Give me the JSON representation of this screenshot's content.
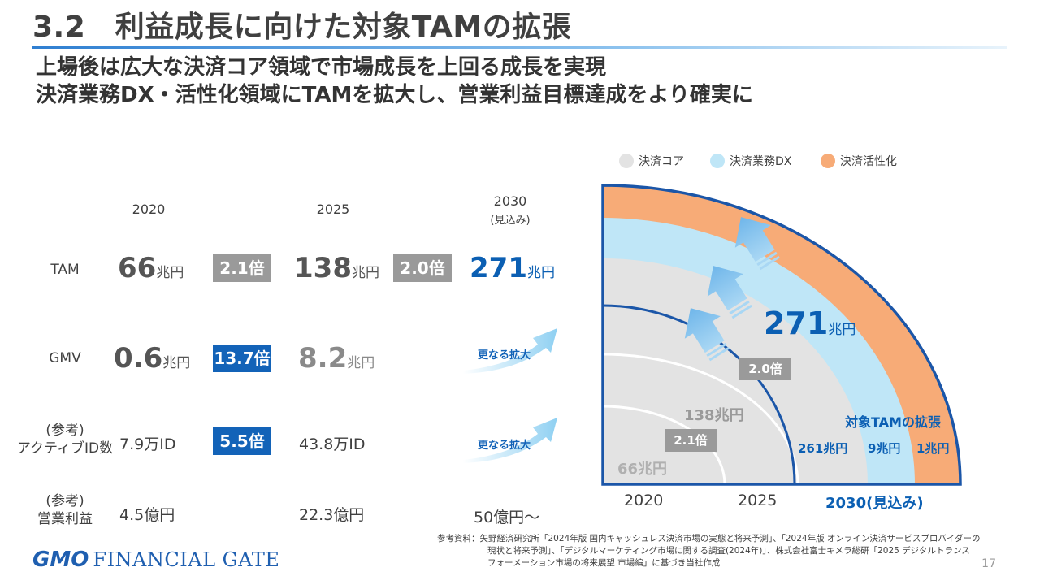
{
  "header": {
    "title": "3.2　利益成長に向けた対象TAMの拡張",
    "subtitle_line1": "上場後は広大な決済コア領域で市場成長を上回る成長を実現",
    "subtitle_line2": "決済業務DX・活性化領域にTAMを拡大し、営業利益目標達成をより確実に"
  },
  "table": {
    "year_2020": "2020",
    "year_2025": "2025",
    "year_2030": "2030",
    "year_2030_note": "(見込み)",
    "rows": {
      "tam": {
        "label": "TAM",
        "v2020": "66",
        "v2020_unit": "兆円",
        "mult1": "2.1倍",
        "v2025": "138",
        "v2025_unit": "兆円",
        "mult2": "2.0倍",
        "v2030": "271",
        "v2030_unit": "兆円"
      },
      "gmv": {
        "label": "GMV",
        "v2020": "0.6",
        "v2020_unit": "兆円",
        "mult1": "13.7倍",
        "v2025": "8.2",
        "v2025_unit": "兆円",
        "further": "更なる拡大"
      },
      "active": {
        "label_line1": "(参考)",
        "label_line2": "アクティブID数",
        "v2020": "7.9万ID",
        "mult1": "5.5倍",
        "v2025": "43.8万ID",
        "further": "更なる拡大"
      },
      "profit": {
        "label_line1": "(参考)",
        "label_line2": "営業利益",
        "v2020": "4.5億円",
        "v2025": "22.3億円",
        "v2030": "50億円～"
      }
    }
  },
  "diagram": {
    "legend": {
      "core": "決済コア",
      "dx": "決済業務DX",
      "activation": "決済活性化"
    },
    "colors": {
      "core": "#e3e3e3",
      "dx": "#bfe6f7",
      "activation": "#f7ab77",
      "outline": "#1b56a8",
      "accent": "#0b5fb3"
    },
    "total_num": "271",
    "total_unit": "兆円",
    "mult_upper": "2.0倍",
    "mult_lower": "2.1倍",
    "val_2025": "138兆円",
    "val_2020": "66兆円",
    "expansion_title": "対象TAMの拡張",
    "seg_core": "261兆円",
    "seg_dx": "9兆円",
    "seg_activation": "1兆円",
    "axis_2020": "2020",
    "axis_2025": "2025",
    "axis_2030": "2030(見込み)"
  },
  "footer": {
    "logo_gmo": "GMO",
    "logo_fg": "FINANCIAL GATE",
    "ref_line1": "参考資料：矢野経済研究所「2024年版 国内キャッシュレス決済市場の実態と将来予測」、「2024年版 オンライン決済サービスプロバイダーの",
    "ref_line2": "現状と将来予測」、「デジタルマーケティング市場に関する調査(2024年)」、株式会社富士キメラ総研「2025 デジタルトランス",
    "ref_line3": "フォーメーション市場の将来展望 市場編」に基づき当社作成",
    "page_number": "17"
  }
}
